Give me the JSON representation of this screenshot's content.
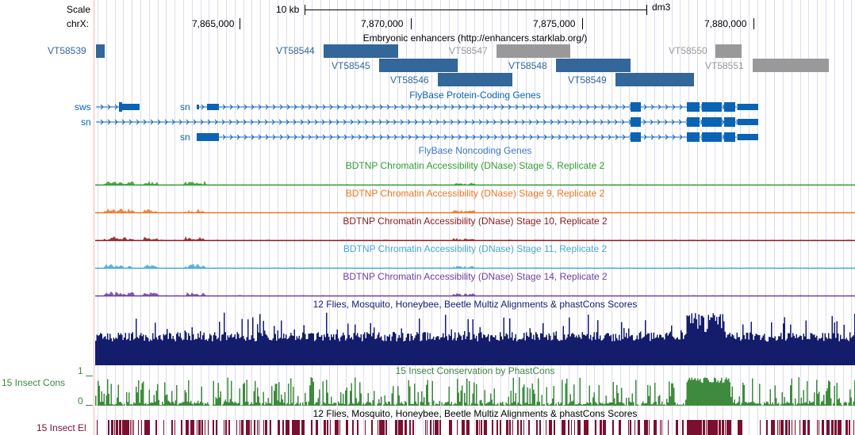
{
  "ruler": {
    "scale_label": "Scale",
    "chrom_label": "chrX:",
    "scale_bar_label": "10 kb",
    "assembly": "dm3",
    "positions": [
      "7,865,000",
      "7,870,000",
      "7,875,000",
      "7,880,000"
    ]
  },
  "tracks": {
    "enhancers": {
      "title": "Embryonic enhancers (http://enhancers.starklab.org/)",
      "items": [
        {
          "name": "VT58539",
          "color": "#336699"
        },
        {
          "name": "VT58544",
          "color": "#336699"
        },
        {
          "name": "VT58545",
          "color": "#336699"
        },
        {
          "name": "VT58546",
          "color": "#336699"
        },
        {
          "name": "VT58547",
          "color": "#999999"
        },
        {
          "name": "VT58548",
          "color": "#336699"
        },
        {
          "name": "VT58549",
          "color": "#336699"
        },
        {
          "name": "VT58550",
          "color": "#999999"
        },
        {
          "name": "VT58551",
          "color": "#999999"
        }
      ]
    },
    "flybase_coding": {
      "title": "FlyBase Protein-Coding Genes",
      "genes": [
        "sws",
        "sn",
        "sn",
        "sn"
      ],
      "color": "#0b63b4"
    },
    "flybase_noncoding": {
      "title": "FlyBase Noncoding Genes",
      "color": "#3a78c8"
    },
    "dnase": [
      {
        "title": "BDTNP Chromatin Accessibility (DNase) Stage 5, Replicate 2",
        "color": "#2f9e2f"
      },
      {
        "title": "BDTNP Chromatin Accessibility (DNase) Stage 9, Replicate 2",
        "color": "#ee7722"
      },
      {
        "title": "BDTNP Chromatin Accessibility (DNase) Stage 10, Replicate 2",
        "color": "#8b1a1a"
      },
      {
        "title": "BDTNP Chromatin Accessibility (DNase) Stage 11, Replicate 2",
        "color": "#46a8d0"
      },
      {
        "title": "BDTNP Chromatin Accessibility (DNase) Stage 14, Replicate 2",
        "color": "#7040a0"
      }
    ],
    "multiz": {
      "title": "12 Flies, Mosquito, Honeybee, Beetle Multiz Alignments & phastCons Scores",
      "color": "#141d6b"
    },
    "phastcons": {
      "title": "15 Insect Conservation by PhastCons",
      "side_label": "15 Insect Cons",
      "ymax": "1",
      "ymin": "0",
      "color": "#3e8a3e"
    },
    "elements": {
      "title": "12 Flies, Mosquito, Honeybee, Beetle Multiz Alignments & phastCons Scores",
      "side_label": "15 Insect El",
      "color": "#7a1030"
    }
  }
}
